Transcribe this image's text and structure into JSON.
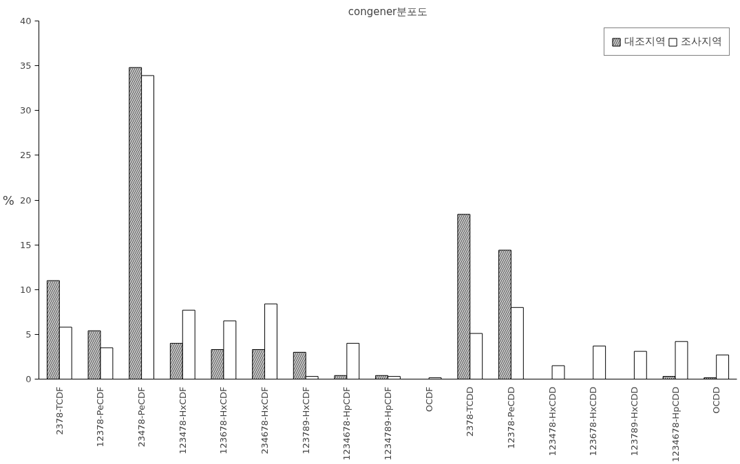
{
  "chart_data": {
    "type": "bar",
    "title": "congener분포도",
    "ylabel": "%",
    "categories": [
      "2378-TCDF",
      "12378-PeCDF",
      "23478-PeCDF",
      "123478-HxCDF",
      "123678-HxCDF",
      "234678-HxCDF",
      "123789-HxCDF",
      "1234678-HpCDF",
      "1234789-HpCDF",
      "OCDF",
      "2378-TCDD",
      "12378-PeCDD",
      "123478-HxCDD",
      "123678-HxCDD",
      "123789-HxCDD",
      "1234678-HpCDD",
      "OCDD"
    ],
    "series": [
      {
        "name": "대조지역",
        "color": "#c8c8c8",
        "values": [
          11.0,
          5.4,
          34.8,
          4.0,
          3.3,
          3.3,
          3.0,
          0.4,
          0.4,
          null,
          18.4,
          14.4,
          null,
          null,
          null,
          0.3,
          0.15
        ]
      },
      {
        "name": "조사지역",
        "color": "#ffffff",
        "values": [
          5.8,
          3.5,
          33.9,
          7.7,
          6.5,
          8.4,
          0.3,
          4.0,
          0.3,
          0.15,
          5.1,
          8.0,
          1.5,
          3.7,
          3.1,
          4.2,
          2.7
        ]
      }
    ],
    "ylim": [
      0,
      40
    ],
    "yticks": [
      0,
      5,
      10,
      15,
      20,
      25,
      30,
      35,
      40
    ],
    "grid": false,
    "legend": "top right"
  }
}
